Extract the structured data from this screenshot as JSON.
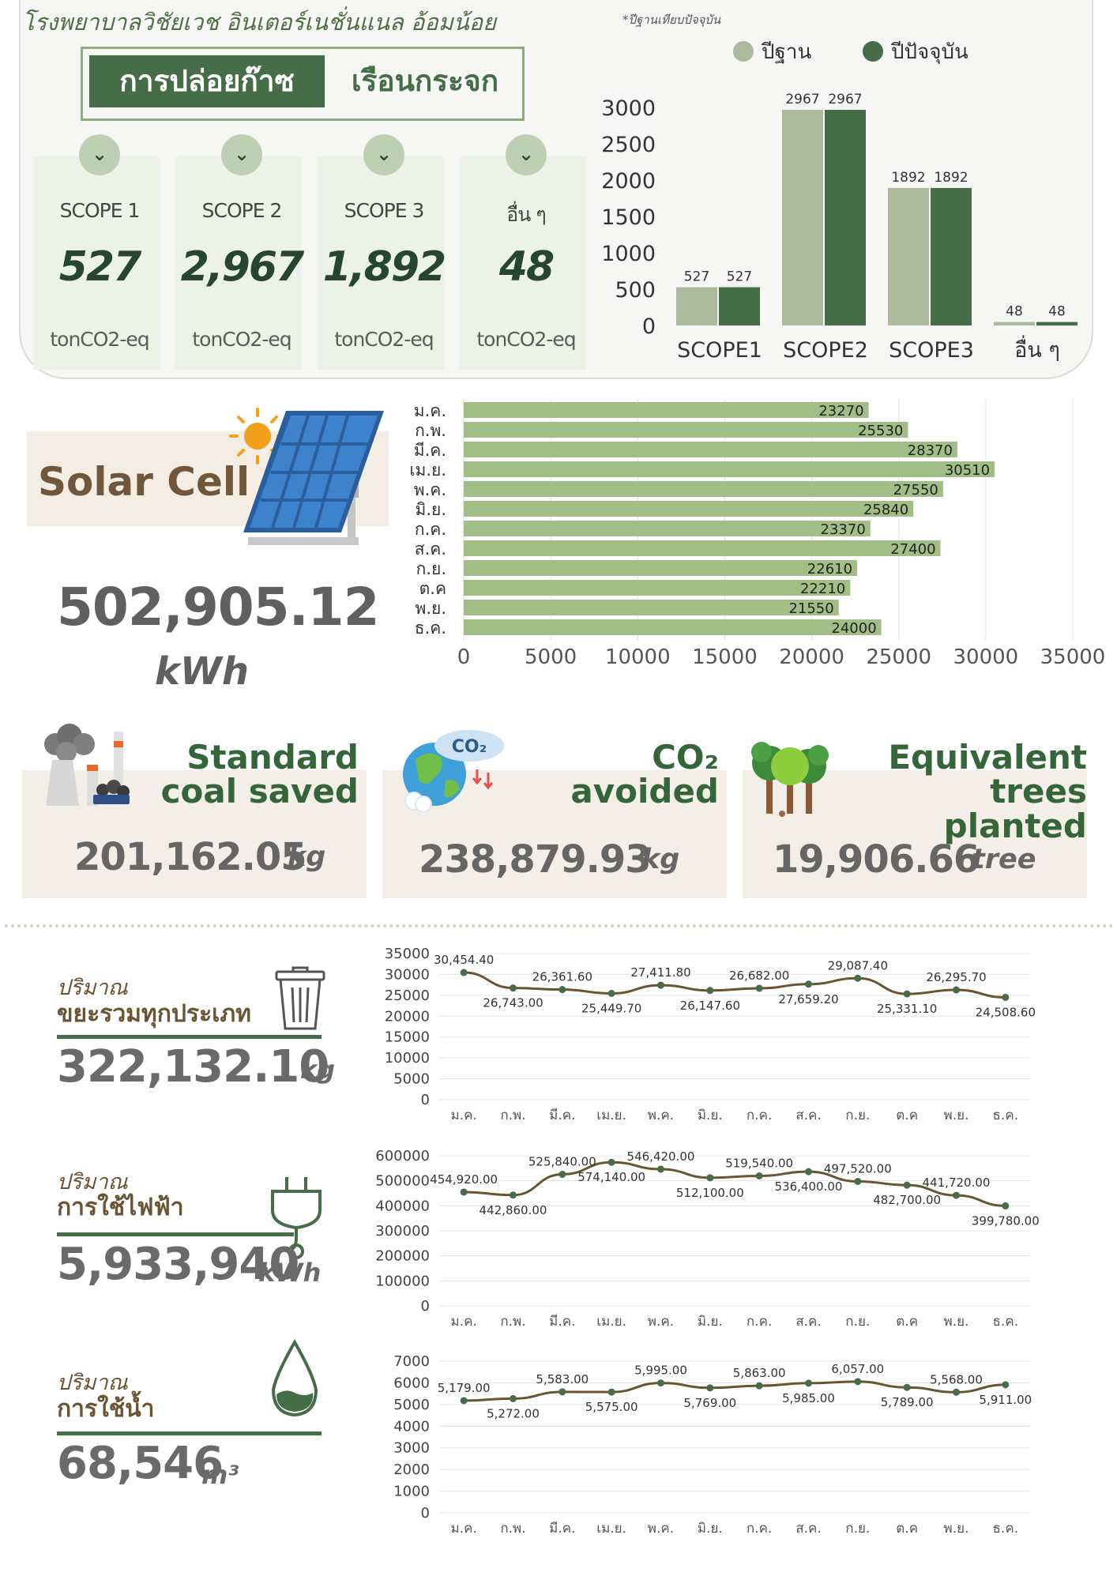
{
  "header": {
    "hospital": "โรงพยาบาลวิชัยเวช อินเตอร์เนชั่นแนล อ้อมน้อย",
    "note": "*ปีฐานเทียบปัจจุบัน",
    "title_part1": "การปล่อยก๊าซ",
    "title_part2": "เรือนกระจก"
  },
  "scopes": [
    {
      "name": "SCOPE 1",
      "value": "527",
      "unit": "tonCO2-eq",
      "icon": "chevron-down-icon"
    },
    {
      "name": "SCOPE 2",
      "value": "2,967",
      "unit": "tonCO2-eq",
      "icon": "chevron-down-icon"
    },
    {
      "name": "SCOPE 3",
      "value": "1,892",
      "unit": "tonCO2-eq",
      "icon": "chevron-down-icon"
    },
    {
      "name": "อื่น ๆ",
      "value": "48",
      "unit": "tonCO2-eq",
      "icon": "chevron-down-icon"
    }
  ],
  "solar": {
    "label": "Solar Cell",
    "value": "502,905.12",
    "unit": "kWh",
    "icon": "solar-panel-icon"
  },
  "stats": [
    {
      "title_line1": "Standard",
      "title_line2": "coal saved",
      "value": "201,162.05",
      "unit": "kg",
      "icon": "coal-plant-icon"
    },
    {
      "title_line1": "CO₂",
      "title_line2": "avoided",
      "value": "238,879.93",
      "unit": "kg",
      "icon": "co2-earth-icon"
    },
    {
      "title_line1": "Equivalent",
      "title_line2": "trees planted",
      "value": "19,906.66",
      "unit": "tree",
      "icon": "trees-icon"
    }
  ],
  "metrics": {
    "waste": {
      "label1": "ปริมาณ",
      "label2": "ขยะรวมทุกประเภท",
      "value": "322,132.10",
      "unit": "kg",
      "icon": "trash-bin-icon"
    },
    "electricity": {
      "label1": "ปริมาณ",
      "label2": "การใช้ไฟฟ้า",
      "value": "5,933,940",
      "unit": "kWh",
      "icon": "power-plug-icon"
    },
    "water": {
      "label1": "ปริมาณ",
      "label2": "การใช้น้ำ",
      "value": "68,546",
      "unit": "m³",
      "icon": "water-drop-icon"
    }
  },
  "colors": {
    "base_bar": "#abb99c",
    "current_bar": "#456d47",
    "solar_bar": "#a2be87",
    "line": "#6b5433",
    "accent": "#456d47"
  },
  "chart_data": [
    {
      "type": "bar",
      "categories": [
        "SCOPE1",
        "SCOPE2",
        "SCOPE3",
        "อื่น ๆ"
      ],
      "series": [
        {
          "name": "ปีฐาน",
          "values": [
            527,
            2967,
            1892,
            48
          ]
        },
        {
          "name": "ปีปัจจุบัน",
          "values": [
            527,
            2967,
            1892,
            48
          ]
        }
      ],
      "ylim": [
        0,
        3000
      ],
      "yticks": [
        "0",
        "500",
        "1000",
        "1500",
        "2000",
        "2500",
        "3000"
      ],
      "legend": "top"
    },
    {
      "type": "bar",
      "orientation": "horizontal",
      "categories": [
        "ม.ค.",
        "ก.พ.",
        "มี.ค.",
        "เม.ย.",
        "พ.ค.",
        "มิ.ย.",
        "ก.ค.",
        "ส.ค.",
        "ก.ย.",
        "ต.ค",
        "พ.ย.",
        "ธ.ค."
      ],
      "values": [
        23270,
        25530,
        28370,
        30510,
        27550,
        25840,
        23370,
        27400,
        22610,
        22210,
        21550,
        24000
      ],
      "xlim": [
        0,
        35000
      ],
      "xticks": [
        "0",
        "5000",
        "10000",
        "15000",
        "20000",
        "25000",
        "30000",
        "35000"
      ],
      "grid": true
    },
    {
      "type": "line",
      "categories": [
        "ม.ค.",
        "ก.พ.",
        "มี.ค.",
        "เม.ย.",
        "พ.ค.",
        "มิ.ย.",
        "ก.ค.",
        "ส.ค.",
        "ก.ย.",
        "ต.ค",
        "พ.ย.",
        "ธ.ค."
      ],
      "values": [
        30454.4,
        26743.0,
        26361.6,
        25449.7,
        27411.8,
        26147.6,
        26682.0,
        27659.2,
        29087.4,
        25331.1,
        26295.7,
        24508.6
      ],
      "labels": [
        "30,454.40",
        "26,743.00",
        "26,361.60",
        "25,449.70",
        "27,411.80",
        "26,147.60",
        "26,682.00",
        "27,659.20",
        "29,087.40",
        "25,331.10",
        "26,295.70",
        "24,508.60"
      ],
      "ylim": [
        0,
        35000
      ],
      "yticks": [
        "0",
        "5000",
        "10000",
        "15000",
        "20000",
        "25000",
        "30000",
        "35000"
      ],
      "grid": true
    },
    {
      "type": "line",
      "categories": [
        "ม.ค.",
        "ก.พ.",
        "มี.ค.",
        "เม.ย.",
        "พ.ค.",
        "มิ.ย.",
        "ก.ค.",
        "ส.ค.",
        "ก.ย.",
        "ต.ค",
        "พ.ย.",
        "ธ.ค."
      ],
      "values": [
        454920,
        442860,
        525840,
        574140,
        546420,
        512100,
        519540,
        536400,
        497520,
        482700,
        441720,
        399780
      ],
      "labels": [
        "454,920.00",
        "442,860.00",
        "525,840.00",
        "574,140.00",
        "546,420.00",
        "512,100.00",
        "519,540.00",
        "536,400.00",
        "497,520.00",
        "482,700.00",
        "441,720.00",
        "399,780.00"
      ],
      "ylim": [
        0,
        600000
      ],
      "yticks": [
        "0",
        "100000",
        "200000",
        "300000",
        "400000",
        "500000",
        "600000"
      ],
      "grid": true
    },
    {
      "type": "line",
      "categories": [
        "ม.ค.",
        "ก.พ.",
        "มี.ค.",
        "เม.ย.",
        "พ.ค.",
        "มิ.ย.",
        "ก.ค.",
        "ส.ค.",
        "ก.ย.",
        "ต.ค",
        "พ.ย.",
        "ธ.ค."
      ],
      "values": [
        5179,
        5272,
        5583,
        5575,
        5995,
        5769,
        5863,
        5985,
        6057,
        5789,
        5568,
        5911
      ],
      "labels": [
        "5,179.00",
        "5,272.00",
        "5,583.00",
        "5,575.00",
        "5,995.00",
        "5,769.00",
        "5,863.00",
        "5,985.00",
        "6,057.00",
        "5,789.00",
        "5,568.00",
        "5,911.00"
      ],
      "ylim": [
        0,
        7000
      ],
      "yticks": [
        "0",
        "1000",
        "2000",
        "3000",
        "4000",
        "5000",
        "6000",
        "7000"
      ],
      "grid": true
    }
  ]
}
